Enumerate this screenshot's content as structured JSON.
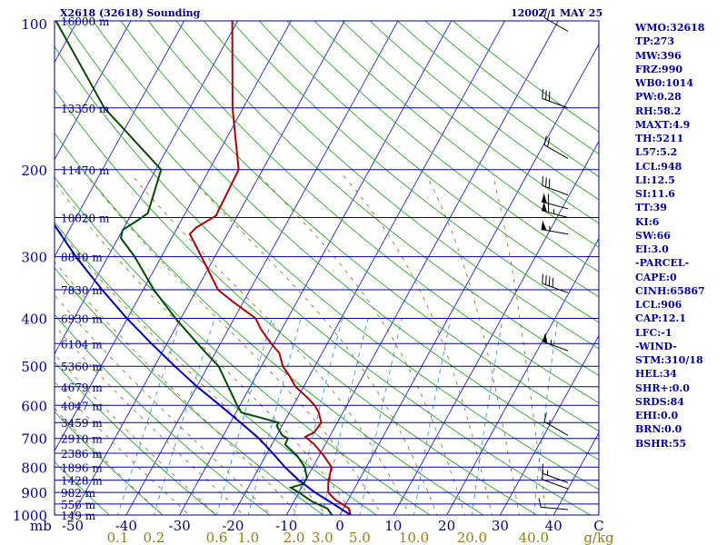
{
  "header": {
    "station": "X2618 (32618) Sounding",
    "datetime": "1200Z  1 MAY 25"
  },
  "indices": [
    "WMO:32618",
    "TP:273",
    "MW:396",
    "FRZ:990",
    "WB0:1014",
    "PW:0.28",
    "RH:58.2",
    "MAXT:4.9",
    "TH:5211",
    "L57:5.2",
    "LCL:948",
    "LI:12.5",
    "SI:11.6",
    "TT:39",
    "KI:6",
    "SW:66",
    "EI:3.0",
    "-PARCEL-",
    "CAPE:0",
    "CINH:65867",
    "LCL:906",
    "CAP:12.1",
    "LFC:-1",
    "-WIND-",
    "STM:310/18",
    "HEL:34",
    "SHR+:0.0",
    "SRDS:84",
    "EHI:0.0",
    "BRN:0.0",
    "BSHR:55"
  ],
  "colors": {
    "isobar": "#0000a0",
    "isotherm": "#2222cc",
    "dry_adiabat": "#22aa22",
    "moist_adiabat": "#8b6914",
    "mixing_ratio": "#3399dd",
    "temperature": "#b00000",
    "dewpoint": "#004d00",
    "parcel": "#0000b0",
    "pressure_label": "#00008b",
    "height_label": "#000080",
    "temp_label": "#00008b",
    "wind_barb": "#000000",
    "mixing_label": "#9a7a14"
  },
  "chart_data": {
    "type": "line",
    "title": "X2618 (32618) Sounding",
    "xlabel": "",
    "ylabel": "mb",
    "pressure_ticks": [
      100,
      200,
      300,
      400,
      500,
      600,
      700,
      800,
      900,
      1000
    ],
    "pressure_tick_labels": [
      "100",
      "200",
      "300",
      "400",
      "500",
      "600",
      "700",
      "800",
      "900",
      "1000"
    ],
    "temperature_ticks": [
      -50,
      -40,
      -30,
      -20,
      -10,
      0,
      10,
      20,
      30,
      40
    ],
    "temperature_tick_labels": [
      "-50",
      "-40",
      "-30",
      "-20",
      "-10",
      "0",
      "10",
      "20",
      "30",
      "40"
    ],
    "temperature_unit_label": "C",
    "pressure_unit_label": "mb",
    "mixing_ratio_ticks": [
      0.1,
      0.2,
      0.6,
      1.0,
      2.0,
      3.0,
      5.0,
      10.0,
      20.0,
      40.0
    ],
    "mixing_ratio_tick_labels": [
      "0.1",
      "0.2",
      "0.6",
      "1.0",
      "2.0",
      "3.0",
      "5.0",
      "10.0",
      "20.0",
      "40.0"
    ],
    "mixing_ratio_unit_label": "g/kg",
    "height_levels": [
      {
        "pres": 100,
        "label": "16000 m"
      },
      {
        "pres": 150,
        "label": "13350 m"
      },
      {
        "pres": 200,
        "label": "11470 m"
      },
      {
        "pres": 250,
        "label": "10020 m"
      },
      {
        "pres": 300,
        "label": "8840 m"
      },
      {
        "pres": 350,
        "label": "7830 m"
      },
      {
        "pres": 400,
        "label": "6930 m"
      },
      {
        "pres": 450,
        "label": "6104 m"
      },
      {
        "pres": 500,
        "label": "5360 m"
      },
      {
        "pres": 550,
        "label": "4679 m"
      },
      {
        "pres": 600,
        "label": "4047 m"
      },
      {
        "pres": 650,
        "label": "3459 m"
      },
      {
        "pres": 700,
        "label": "2910 m"
      },
      {
        "pres": 750,
        "label": "2386 m"
      },
      {
        "pres": 800,
        "label": "1896 m"
      },
      {
        "pres": 850,
        "label": "1428 m"
      },
      {
        "pres": 900,
        "label": "982 m"
      },
      {
        "pres": 950,
        "label": "556 m"
      },
      {
        "pres": 1000,
        "label": "149 m"
      }
    ],
    "series": [
      {
        "key": "temperature",
        "points": [
          {
            "p": 1000,
            "t": 2.0
          },
          {
            "p": 970,
            "t": 1.0
          },
          {
            "p": 930,
            "t": -2.5
          },
          {
            "p": 900,
            "t": -4.5
          },
          {
            "p": 860,
            "t": -5.5
          },
          {
            "p": 830,
            "t": -6.0
          },
          {
            "p": 800,
            "t": -6.5
          },
          {
            "p": 760,
            "t": -9.0
          },
          {
            "p": 720,
            "t": -12.0
          },
          {
            "p": 695,
            "t": -14.5
          },
          {
            "p": 680,
            "t": -13.3
          },
          {
            "p": 650,
            "t": -13.0
          },
          {
            "p": 620,
            "t": -14.5
          },
          {
            "p": 600,
            "t": -16.0
          },
          {
            "p": 580,
            "t": -18.0
          },
          {
            "p": 550,
            "t": -21.5
          },
          {
            "p": 520,
            "t": -24.0
          },
          {
            "p": 500,
            "t": -26.0
          },
          {
            "p": 470,
            "t": -28.0
          },
          {
            "p": 450,
            "t": -30.5
          },
          {
            "p": 420,
            "t": -34.0
          },
          {
            "p": 400,
            "t": -36.0
          },
          {
            "p": 370,
            "t": -42.0
          },
          {
            "p": 350,
            "t": -46.0
          },
          {
            "p": 300,
            "t": -52.5
          },
          {
            "p": 270,
            "t": -57.0
          },
          {
            "p": 262,
            "t": -56.5
          },
          {
            "p": 248,
            "t": -54.0
          },
          {
            "p": 200,
            "t": -54.5
          },
          {
            "p": 150,
            "t": -62.0
          },
          {
            "p": 100,
            "t": -71.0
          }
        ]
      },
      {
        "key": "dewpoint",
        "points": [
          {
            "p": 1000,
            "t": -1.5
          },
          {
            "p": 970,
            "t": -3.0
          },
          {
            "p": 940,
            "t": -6.5
          },
          {
            "p": 900,
            "t": -10.0
          },
          {
            "p": 880,
            "t": -12.0
          },
          {
            "p": 865,
            "t": -10.0
          },
          {
            "p": 840,
            "t": -10.0
          },
          {
            "p": 800,
            "t": -11.5
          },
          {
            "p": 760,
            "t": -14.0
          },
          {
            "p": 720,
            "t": -17.5
          },
          {
            "p": 700,
            "t": -17.6
          },
          {
            "p": 690,
            "t": -19.0
          },
          {
            "p": 660,
            "t": -21.0
          },
          {
            "p": 650,
            "t": -21.0
          },
          {
            "p": 620,
            "t": -29.0
          },
          {
            "p": 600,
            "t": -30.5
          },
          {
            "p": 500,
            "t": -38.0
          },
          {
            "p": 460,
            "t": -43.0
          },
          {
            "p": 400,
            "t": -51.0
          },
          {
            "p": 350,
            "t": -58.0
          },
          {
            "p": 300,
            "t": -65.0
          },
          {
            "p": 275,
            "t": -69.5
          },
          {
            "p": 265,
            "t": -70.0
          },
          {
            "p": 252,
            "t": -68.0
          },
          {
            "p": 245,
            "t": -67.0
          },
          {
            "p": 200,
            "t": -69.0
          },
          {
            "p": 150,
            "t": -86.0
          },
          {
            "p": 100,
            "t": -104.0
          }
        ]
      },
      {
        "key": "parcel",
        "points": [
          {
            "p": 1000,
            "t": 2.0
          },
          {
            "p": 950,
            "t": -2.3
          },
          {
            "p": 900,
            "t": -7.0
          },
          {
            "p": 850,
            "t": -11.3
          },
          {
            "p": 800,
            "t": -15.2
          },
          {
            "p": 750,
            "t": -18.9
          },
          {
            "p": 700,
            "t": -23.0
          },
          {
            "p": 650,
            "t": -28.1
          },
          {
            "p": 600,
            "t": -33.7
          },
          {
            "p": 550,
            "t": -39.9
          },
          {
            "p": 500,
            "t": -46.2
          },
          {
            "p": 450,
            "t": -52.9
          },
          {
            "p": 400,
            "t": -60.1
          },
          {
            "p": 350,
            "t": -67.7
          },
          {
            "p": 300,
            "t": -76.0
          },
          {
            "p": 250,
            "t": -85.0
          },
          {
            "p": 200,
            "t": -95.4
          },
          {
            "p": 150,
            "t": -107.8
          },
          {
            "p": 110,
            "t": -117.5
          }
        ]
      }
    ],
    "winds": [
      {
        "p": 105,
        "dir": 300,
        "spd": 20
      },
      {
        "p": 150,
        "dir": 290,
        "spd": 30
      },
      {
        "p": 190,
        "dir": 300,
        "spd": 20
      },
      {
        "p": 225,
        "dir": 290,
        "spd": 30
      },
      {
        "p": 240,
        "dir": 285,
        "spd": 60
      },
      {
        "p": 250,
        "dir": 285,
        "spd": 65
      },
      {
        "p": 270,
        "dir": 280,
        "spd": 55
      },
      {
        "p": 355,
        "dir": 290,
        "spd": 40
      },
      {
        "p": 465,
        "dir": 290,
        "spd": 55
      },
      {
        "p": 690,
        "dir": 300,
        "spd": 15
      },
      {
        "p": 860,
        "dir": 290,
        "spd": 15
      },
      {
        "p": 885,
        "dir": 290,
        "spd": 10
      },
      {
        "p": 975,
        "dir": 275,
        "spd": 10
      }
    ]
  }
}
